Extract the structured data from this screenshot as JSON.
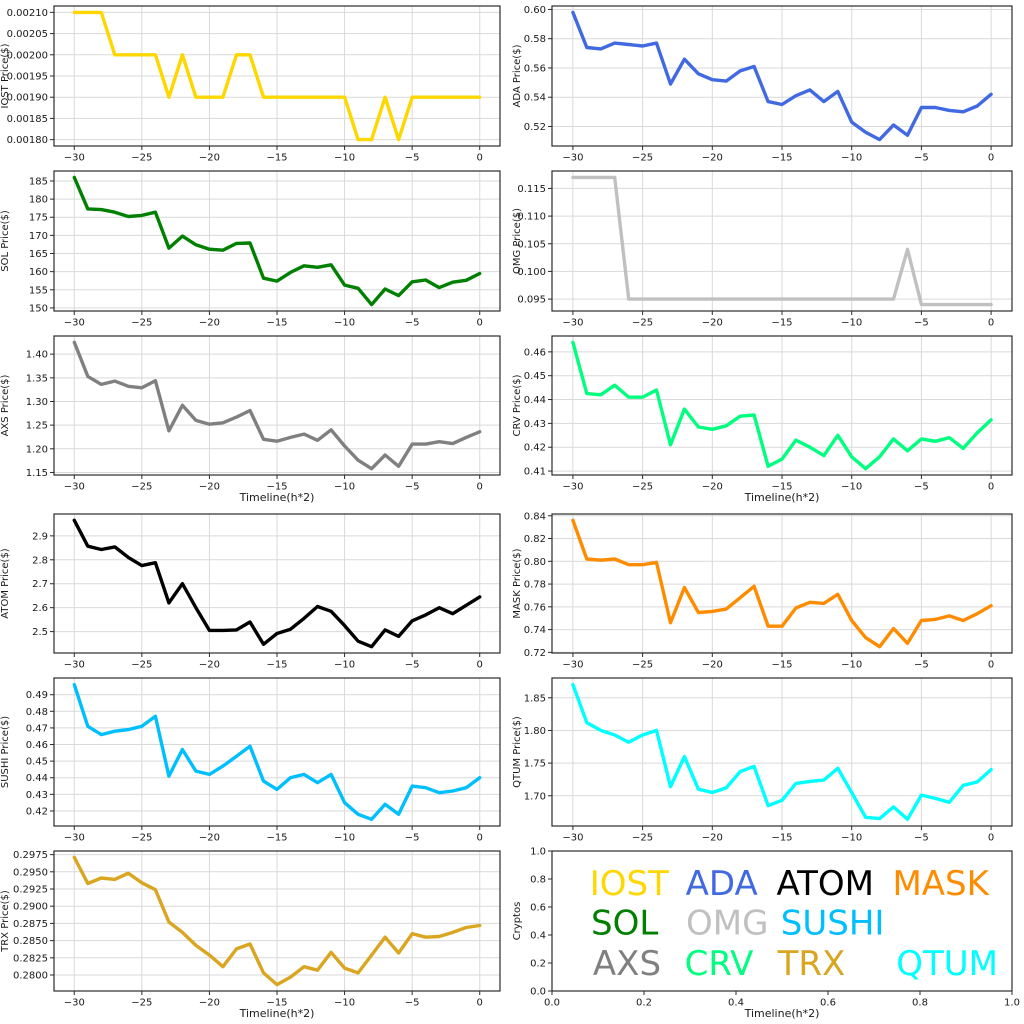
{
  "figure": {
    "background": "#ffffff",
    "grid_color": "#d9d9d9",
    "spine_color": "#2b2b2b",
    "tick_color": "#2b2b2b",
    "text_color": "#1a1a1a",
    "xlabel_text": "Timeline(h*2)"
  },
  "chart_data": [
    {
      "type": "line",
      "name": "IOST",
      "ylabel": "IOST Price($)",
      "xlabel": "",
      "color": "#FFD700",
      "x_range": [
        -30,
        0
      ],
      "values": [
        0.0021,
        0.0021,
        0.0021,
        0.002,
        0.002,
        0.002,
        0.002,
        0.0019,
        0.002,
        0.0019,
        0.0019,
        0.0019,
        0.002,
        0.002,
        0.0019,
        0.0019,
        0.0019,
        0.0019,
        0.0019,
        0.0019,
        0.0019,
        0.0018,
        0.0018,
        0.0019,
        0.0018,
        0.0019,
        0.0019,
        0.0019,
        0.0019,
        0.0019,
        0.0019
      ],
      "xticks": [
        -30,
        -25,
        -20,
        -15,
        -10,
        -5,
        0
      ],
      "xtick_decimals": 0,
      "yticks": [
        0.0018,
        0.00185,
        0.0019,
        0.00195,
        0.002,
        0.00205,
        0.0021
      ],
      "ytick_decimals": 5,
      "xlim": [
        -31.5,
        1.5
      ],
      "grid": true
    },
    {
      "type": "line",
      "name": "ADA",
      "ylabel": "ADA Price($)",
      "xlabel": "",
      "color": "#4169E1",
      "x_range": [
        -30,
        0
      ],
      "values": [
        0.598,
        0.574,
        0.573,
        0.577,
        0.576,
        0.575,
        0.577,
        0.549,
        0.566,
        0.556,
        0.552,
        0.551,
        0.558,
        0.561,
        0.537,
        0.535,
        0.541,
        0.545,
        0.537,
        0.544,
        0.523,
        0.516,
        0.511,
        0.521,
        0.514,
        0.533,
        0.533,
        0.531,
        0.53,
        0.534,
        0.542
      ],
      "xticks": [
        -30,
        -25,
        -20,
        -15,
        -10,
        -5,
        0
      ],
      "xtick_decimals": 0,
      "yticks": [
        0.52,
        0.54,
        0.56,
        0.58,
        0.6
      ],
      "ytick_decimals": 2,
      "xlim": [
        -31.5,
        1.5
      ],
      "grid": true
    },
    {
      "type": "line",
      "name": "SOL",
      "ylabel": "SOL Price($)",
      "xlabel": "",
      "color": "#008000",
      "x_range": [
        -30,
        0
      ],
      "values": [
        186.0,
        177.3,
        177.1,
        176.4,
        175.2,
        175.5,
        176.4,
        166.5,
        169.8,
        167.4,
        166.2,
        165.9,
        167.8,
        167.9,
        158.2,
        157.4,
        159.8,
        161.6,
        161.2,
        161.9,
        156.3,
        155.4,
        150.9,
        155.2,
        153.4,
        157.2,
        157.7,
        155.6,
        157.1,
        157.6,
        159.5
      ],
      "xticks": [
        -30,
        -25,
        -20,
        -15,
        -10,
        -5,
        0
      ],
      "xtick_decimals": 0,
      "yticks": [
        150,
        155,
        160,
        165,
        170,
        175,
        180,
        185
      ],
      "ytick_decimals": 0,
      "xlim": [
        -31.5,
        1.5
      ],
      "grid": true
    },
    {
      "type": "line",
      "name": "OMG",
      "ylabel": "OMG Price($)",
      "xlabel": "",
      "color": "#C0C0C0",
      "x_range": [
        -30,
        0
      ],
      "values": [
        0.117,
        0.117,
        0.117,
        0.117,
        0.095,
        0.095,
        0.095,
        0.095,
        0.095,
        0.095,
        0.095,
        0.095,
        0.095,
        0.095,
        0.095,
        0.095,
        0.095,
        0.095,
        0.095,
        0.095,
        0.095,
        0.095,
        0.095,
        0.095,
        0.104,
        0.094,
        0.094,
        0.094,
        0.094,
        0.094,
        0.094
      ],
      "xticks": [
        -30,
        -25,
        -20,
        -15,
        -10,
        -5,
        0
      ],
      "xtick_decimals": 0,
      "yticks": [
        0.095,
        0.1,
        0.105,
        0.11,
        0.115
      ],
      "ytick_decimals": 3,
      "xlim": [
        -31.5,
        1.5
      ],
      "grid": true
    },
    {
      "type": "line",
      "name": "AXS",
      "ylabel": "AXS Price($)",
      "xlabel": "Timeline(h*2)",
      "color": "#808080",
      "x_range": [
        -30,
        0
      ],
      "values": [
        1.425,
        1.353,
        1.336,
        1.343,
        1.332,
        1.329,
        1.344,
        1.238,
        1.292,
        1.26,
        1.252,
        1.255,
        1.267,
        1.281,
        1.22,
        1.216,
        1.224,
        1.231,
        1.218,
        1.24,
        1.206,
        1.176,
        1.158,
        1.187,
        1.163,
        1.21,
        1.21,
        1.215,
        1.211,
        1.224,
        1.236
      ],
      "xticks": [
        -30,
        -25,
        -20,
        -15,
        -10,
        -5,
        0
      ],
      "xtick_decimals": 0,
      "yticks": [
        1.15,
        1.2,
        1.25,
        1.3,
        1.35,
        1.4
      ],
      "ytick_decimals": 2,
      "xlim": [
        -31.5,
        1.5
      ],
      "grid": true
    },
    {
      "type": "line",
      "name": "CRV",
      "ylabel": "CRV Price($)",
      "xlabel": "Timeline(h*2)",
      "color": "#00FF7F",
      "x_range": [
        -30,
        0
      ],
      "values": [
        0.464,
        0.4425,
        0.442,
        0.446,
        0.441,
        0.441,
        0.444,
        0.421,
        0.436,
        0.4285,
        0.4275,
        0.429,
        0.433,
        0.4335,
        0.412,
        0.415,
        0.423,
        0.42,
        0.4165,
        0.425,
        0.416,
        0.411,
        0.416,
        0.4235,
        0.4185,
        0.4235,
        0.4225,
        0.424,
        0.4195,
        0.426,
        0.4315
      ],
      "xticks": [
        -30,
        -25,
        -20,
        -15,
        -10,
        -5,
        0
      ],
      "xtick_decimals": 0,
      "yticks": [
        0.41,
        0.42,
        0.43,
        0.44,
        0.45,
        0.46
      ],
      "ytick_decimals": 2,
      "xlim": [
        -31.5,
        1.5
      ],
      "grid": true
    },
    {
      "type": "line",
      "name": "ATOM",
      "ylabel": "ATOM Price($)",
      "xlabel": "",
      "color": "#000000",
      "x_range": [
        -30,
        0
      ],
      "values": [
        2.965,
        2.857,
        2.843,
        2.854,
        2.81,
        2.776,
        2.788,
        2.62,
        2.7,
        2.6,
        2.505,
        2.505,
        2.507,
        2.54,
        2.447,
        2.492,
        2.51,
        2.555,
        2.605,
        2.585,
        2.525,
        2.46,
        2.437,
        2.507,
        2.48,
        2.545,
        2.57,
        2.6,
        2.575,
        2.61,
        2.645
      ],
      "xticks": [
        -30,
        -25,
        -20,
        -15,
        -10,
        -5,
        0
      ],
      "xtick_decimals": 0,
      "yticks": [
        2.5,
        2.6,
        2.7,
        2.8,
        2.9
      ],
      "ytick_decimals": 1,
      "xlim": [
        -31.5,
        1.5
      ],
      "grid": true
    },
    {
      "type": "line",
      "name": "MASK",
      "ylabel": "MASK Price($)",
      "xlabel": "",
      "color": "#FF8C00",
      "x_range": [
        -30,
        0
      ],
      "values": [
        0.836,
        0.802,
        0.801,
        0.802,
        0.797,
        0.797,
        0.799,
        0.746,
        0.777,
        0.755,
        0.756,
        0.758,
        0.768,
        0.778,
        0.743,
        0.743,
        0.759,
        0.764,
        0.763,
        0.771,
        0.748,
        0.733,
        0.725,
        0.741,
        0.728,
        0.748,
        0.749,
        0.752,
        0.748,
        0.754,
        0.761
      ],
      "xticks": [
        -30,
        -25,
        -20,
        -15,
        -10,
        -5,
        0
      ],
      "xtick_decimals": 0,
      "yticks": [
        0.72,
        0.74,
        0.76,
        0.78,
        0.8,
        0.82,
        0.84
      ],
      "ytick_decimals": 2,
      "xlim": [
        -31.5,
        1.5
      ],
      "grid": true
    },
    {
      "type": "line",
      "name": "SUSHI",
      "ylabel": "SUSHI Price($)",
      "xlabel": "",
      "color": "#00BFFF",
      "x_range": [
        -30,
        0
      ],
      "values": [
        0.496,
        0.471,
        0.466,
        0.468,
        0.469,
        0.471,
        0.477,
        0.441,
        0.457,
        0.444,
        0.442,
        0.447,
        0.453,
        0.459,
        0.438,
        0.433,
        0.44,
        0.442,
        0.437,
        0.442,
        0.425,
        0.418,
        0.415,
        0.424,
        0.418,
        0.435,
        0.434,
        0.431,
        0.432,
        0.434,
        0.44
      ],
      "xticks": [
        -30,
        -25,
        -20,
        -15,
        -10,
        -5,
        0
      ],
      "xtick_decimals": 0,
      "yticks": [
        0.42,
        0.43,
        0.44,
        0.45,
        0.46,
        0.47,
        0.48,
        0.49
      ],
      "ytick_decimals": 2,
      "xlim": [
        -31.5,
        1.5
      ],
      "grid": true
    },
    {
      "type": "line",
      "name": "QTUM",
      "ylabel": "QTUM Price($)",
      "xlabel": "",
      "color": "#00FFFF",
      "x_range": [
        -30,
        0
      ],
      "values": [
        1.87,
        1.812,
        1.8,
        1.793,
        1.782,
        1.793,
        1.8,
        1.714,
        1.76,
        1.71,
        1.705,
        1.712,
        1.737,
        1.745,
        1.685,
        1.693,
        1.719,
        1.722,
        1.724,
        1.742,
        1.705,
        1.667,
        1.665,
        1.683,
        1.664,
        1.701,
        1.696,
        1.69,
        1.716,
        1.721,
        1.74
      ],
      "xticks": [
        -30,
        -25,
        -20,
        -15,
        -10,
        -5,
        0
      ],
      "xtick_decimals": 0,
      "yticks": [
        1.7,
        1.75,
        1.8,
        1.85
      ],
      "ytick_decimals": 2,
      "xlim": [
        -31.5,
        1.5
      ],
      "grid": true
    },
    {
      "type": "line",
      "name": "TRX",
      "ylabel": "TRX Price($)",
      "xlabel": "Timeline(h*2)",
      "color": "#DAA520",
      "x_range": [
        -30,
        0
      ],
      "values": [
        0.2971,
        0.2933,
        0.2941,
        0.2939,
        0.2948,
        0.2934,
        0.2924,
        0.2877,
        0.2862,
        0.2843,
        0.2829,
        0.2812,
        0.2838,
        0.2845,
        0.2803,
        0.2786,
        0.2797,
        0.2812,
        0.2807,
        0.2833,
        0.281,
        0.2803,
        0.2829,
        0.2855,
        0.2832,
        0.286,
        0.2855,
        0.2856,
        0.2862,
        0.2869,
        0.2872
      ],
      "xticks": [
        -30,
        -25,
        -20,
        -15,
        -10,
        -5,
        0
      ],
      "xtick_decimals": 0,
      "yticks": [
        0.28,
        0.2825,
        0.285,
        0.2875,
        0.29,
        0.2925,
        0.295,
        0.2975
      ],
      "ytick_decimals": 4,
      "xlim": [
        -31.5,
        1.5
      ],
      "grid": true
    },
    {
      "type": "legend",
      "name": "Cryptos",
      "ylabel": "Cryptos",
      "xlabel": "Timeline(h*2)",
      "xticks": [
        0,
        0.2,
        0.4,
        0.6,
        0.8,
        1.0
      ],
      "xtick_decimals": 1,
      "yticks": [
        0,
        0.2,
        0.4,
        0.6,
        0.8,
        1.0
      ],
      "ytick_decimals": 1,
      "xlim": [
        0,
        1
      ],
      "ylim": [
        0,
        1
      ],
      "grid": false,
      "entries": [
        {
          "label": "IOST",
          "color": "#FFD700",
          "x": 0.168,
          "y": 0.77
        },
        {
          "label": "ADA",
          "color": "#4169E1",
          "x": 0.369,
          "y": 0.77
        },
        {
          "label": "ATOM",
          "color": "#000000",
          "x": 0.594,
          "y": 0.77
        },
        {
          "label": "MASK",
          "color": "#FF8C00",
          "x": 0.845,
          "y": 0.77
        },
        {
          "label": "SOL",
          "color": "#008000",
          "x": 0.158,
          "y": 0.49
        },
        {
          "label": "OMG",
          "color": "#C0C0C0",
          "x": 0.381,
          "y": 0.49
        },
        {
          "label": "SUSHI",
          "color": "#00BFFF",
          "x": 0.61,
          "y": 0.49
        },
        {
          "label": "AXS",
          "color": "#808080",
          "x": 0.163,
          "y": 0.2
        },
        {
          "label": "CRV",
          "color": "#00FF7F",
          "x": 0.363,
          "y": 0.2
        },
        {
          "label": "TRX",
          "color": "#DAA520",
          "x": 0.564,
          "y": 0.2
        },
        {
          "label": "QTUM",
          "color": "#00FFFF",
          "x": 0.859,
          "y": 0.2
        }
      ]
    }
  ]
}
